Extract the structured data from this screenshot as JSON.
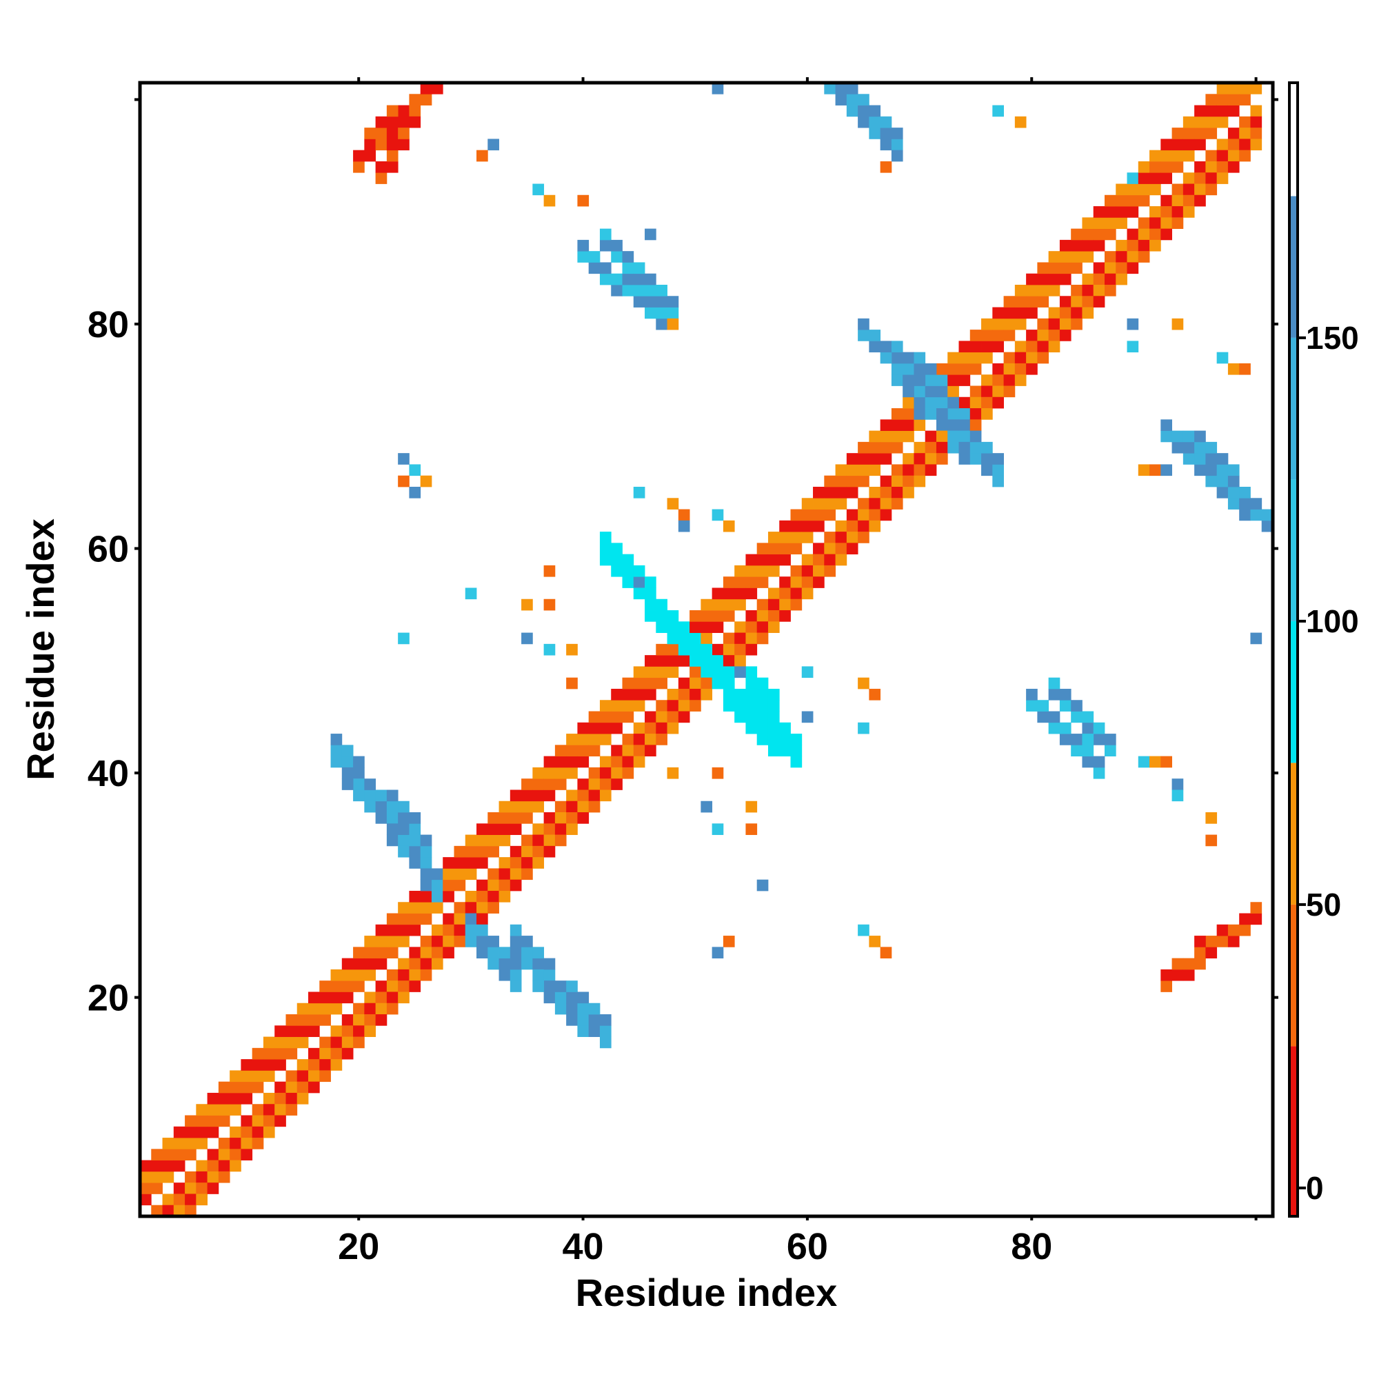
{
  "chart_data": {
    "type": "heatmap",
    "title": "",
    "xlabel": "Residue index",
    "ylabel": "Residue index",
    "xlim": [
      1,
      101
    ],
    "ylim": [
      1,
      101
    ],
    "xticks": [
      20,
      40,
      60,
      80
    ],
    "yticks": [
      20,
      40,
      60,
      80
    ],
    "grid": false,
    "colorbar": {
      "ticks": [
        0,
        50,
        100,
        150
      ],
      "range": [
        -5,
        195
      ],
      "bands": [
        {
          "from": -5,
          "to": 25,
          "color": "#e8140e"
        },
        {
          "from": 25,
          "to": 50,
          "color": "#f46a0e"
        },
        {
          "from": 50,
          "to": 75,
          "color": "#f6960c"
        },
        {
          "from": 75,
          "to": 100,
          "color": "#00e5ef"
        },
        {
          "from": 100,
          "to": 125,
          "color": "#30c6e4"
        },
        {
          "from": 125,
          "to": 150,
          "color": "#3db2dc"
        },
        {
          "from": 150,
          "to": 175,
          "color": "#4a8cc4"
        },
        {
          "from": 175,
          "to": 195,
          "color": "#ffffff"
        }
      ]
    },
    "series": [
      {
        "segments": [
          [
            1,
            1,
            29,
            29
          ],
          [
            29,
            29,
            70,
            70
          ],
          [
            70,
            70,
            100,
            100
          ]
        ],
        "offsets": [
          1,
          2,
          3,
          4
        ],
        "values": [
          15,
          40,
          60
        ]
      },
      {
        "segments": [
          [
            1,
            1,
            29,
            29
          ],
          [
            29,
            29,
            70,
            70
          ],
          [
            70,
            70,
            100,
            100
          ]
        ],
        "offsets": [
          -1,
          -2,
          -3,
          -4
        ],
        "values": [
          15,
          40,
          60
        ]
      },
      {
        "segments": [
          [
            42,
            60,
            57,
            43
          ],
          [
            55,
            48,
            57,
            46
          ],
          [
            56,
            45,
            59,
            42
          ]
        ],
        "offsets": [
          0,
          1,
          -1
        ],
        "values": [
          88
        ]
      },
      {
        "segments": [
          [
            30,
            26,
            34,
            22
          ],
          [
            34,
            25,
            40,
            18
          ],
          [
            36,
            22,
            42,
            17
          ]
        ],
        "offsets": [
          0,
          1,
          -1
        ],
        "values": [
          145,
          160
        ]
      },
      {
        "segments": [
          [
            18,
            42,
            27,
            30
          ],
          [
            19,
            40,
            26,
            33
          ],
          [
            21,
            38,
            25,
            35
          ]
        ],
        "offsets": [
          0,
          1,
          -1
        ],
        "values": [
          145,
          160
        ]
      },
      {
        "segments": [
          [
            68,
            76,
            71,
            73
          ],
          [
            70,
            73,
            74,
            71
          ],
          [
            73,
            70,
            77,
            67
          ]
        ],
        "offsets": [
          0,
          1,
          -1
        ],
        "values": [
          145,
          160
        ]
      },
      {
        "segments": [
          [
            65,
            79,
            70,
            75
          ],
          [
            68,
            77,
            72,
            74
          ]
        ],
        "offsets": [
          0,
          1
        ],
        "values": [
          145,
          160
        ]
      },
      {
        "segments": [
          [
            92,
            70,
            99,
            63
          ],
          [
            94,
            69,
            100,
            63
          ],
          [
            95,
            69,
            101,
            62
          ]
        ],
        "offsets": [
          0,
          1
        ],
        "values": [
          145,
          160
        ]
      },
      {
        "segments": [
          [
            62,
            101,
            67,
            96
          ],
          [
            63,
            101,
            68,
            96
          ]
        ],
        "offsets": [
          0,
          1
        ],
        "values": [
          145,
          160
        ]
      },
      {
        "segments": [
          [
            40,
            86,
            47,
            80
          ],
          [
            42,
            87,
            46,
            83
          ],
          [
            44,
            85,
            48,
            81
          ]
        ],
        "offsets": [
          0,
          1
        ],
        "values": [
          115,
          160
        ]
      },
      {
        "segments": [
          [
            80,
            46,
            86,
            40
          ],
          [
            82,
            47,
            87,
            42
          ],
          [
            84,
            45,
            85,
            43
          ]
        ],
        "offsets": [
          0,
          1
        ],
        "values": [
          115,
          160
        ]
      },
      {
        "segments": [
          [
            92,
            21,
            99,
            26
          ],
          [
            94,
            22,
            100,
            27
          ],
          [
            95,
            24,
            98,
            25
          ]
        ],
        "offsets": [
          0,
          1
        ],
        "values": [
          30,
          15
        ]
      },
      {
        "segments": [
          [
            20,
            94,
            27,
            101
          ],
          [
            21,
            96,
            25,
            99
          ],
          [
            22,
            93,
            25,
            98
          ]
        ],
        "offsets": [
          0,
          1
        ],
        "values": [
          30,
          15
        ]
      },
      {
        "points": [
          [
            52,
            101
          ],
          [
            77,
            99
          ],
          [
            79,
            98
          ],
          [
            67,
            94
          ],
          [
            68,
            95
          ],
          [
            89,
            93
          ],
          [
            90,
            94
          ],
          [
            31,
            95
          ],
          [
            32,
            96
          ],
          [
            36,
            92
          ],
          [
            37,
            91
          ],
          [
            40,
            91
          ],
          [
            46,
            88
          ],
          [
            47,
            81
          ],
          [
            48,
            80
          ],
          [
            53,
            25
          ],
          [
            52,
            24
          ],
          [
            65,
            26
          ],
          [
            66,
            25
          ],
          [
            67,
            24
          ],
          [
            24,
            68
          ],
          [
            25,
            67
          ],
          [
            26,
            66
          ],
          [
            24,
            66
          ],
          [
            25,
            65
          ],
          [
            45,
            65
          ],
          [
            48,
            64
          ],
          [
            49,
            63
          ],
          [
            49,
            62
          ],
          [
            52,
            63
          ],
          [
            53,
            62
          ],
          [
            37,
            58
          ],
          [
            45,
            57
          ],
          [
            30,
            56
          ],
          [
            35,
            55
          ],
          [
            37,
            55
          ],
          [
            35,
            52
          ],
          [
            37,
            51
          ],
          [
            39,
            51
          ],
          [
            39,
            48
          ],
          [
            54,
            49
          ],
          [
            60,
            49
          ],
          [
            65,
            48
          ],
          [
            66,
            47
          ],
          [
            60,
            45
          ],
          [
            65,
            44
          ],
          [
            48,
            40
          ],
          [
            52,
            40
          ],
          [
            51,
            37
          ],
          [
            52,
            35
          ],
          [
            55,
            37
          ],
          [
            55,
            35
          ],
          [
            56,
            30
          ],
          [
            90,
            41
          ],
          [
            91,
            41
          ],
          [
            92,
            41
          ],
          [
            93,
            39
          ],
          [
            93,
            38
          ],
          [
            96,
            36
          ],
          [
            96,
            34
          ],
          [
            89,
            80
          ],
          [
            89,
            78
          ],
          [
            90,
            67
          ],
          [
            91,
            67
          ],
          [
            92,
            67
          ],
          [
            97,
            77
          ],
          [
            98,
            76
          ],
          [
            99,
            76
          ],
          [
            100,
            52
          ],
          [
            24,
            52
          ],
          [
            93,
            80
          ]
        ],
        "values": [
          150,
          110,
          60,
          30
        ]
      }
    ]
  }
}
